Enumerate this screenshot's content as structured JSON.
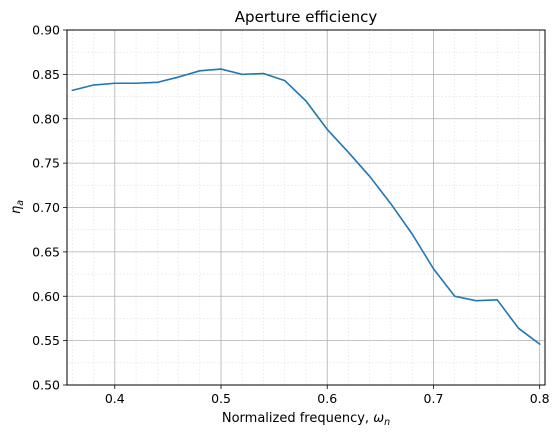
{
  "chart_data": {
    "type": "line",
    "title": "Aperture efficiency",
    "xlabel": {
      "text": "Normalized frequency, ",
      "symbol": "ω",
      "subscript": "n"
    },
    "ylabel": {
      "symbol": "η",
      "subscript": "a"
    },
    "xlim": [
      0.355,
      0.805
    ],
    "ylim": [
      0.5,
      0.9
    ],
    "xticks": [
      0.4,
      0.5,
      0.6,
      0.7,
      0.8
    ],
    "xtick_labels": [
      "0.4",
      "0.5",
      "0.6",
      "0.7",
      "0.8"
    ],
    "yticks": [
      0.5,
      0.55,
      0.6,
      0.65,
      0.7,
      0.75,
      0.8,
      0.85,
      0.9
    ],
    "ytick_labels": [
      "0.50",
      "0.55",
      "0.60",
      "0.65",
      "0.70",
      "0.75",
      "0.80",
      "0.85",
      "0.90"
    ],
    "grid": true,
    "series": [
      {
        "color": "#1f77b4",
        "x": [
          0.36,
          0.38,
          0.4,
          0.42,
          0.44,
          0.46,
          0.48,
          0.5,
          0.52,
          0.54,
          0.56,
          0.58,
          0.6,
          0.62,
          0.64,
          0.66,
          0.68,
          0.7,
          0.72,
          0.74,
          0.76,
          0.78,
          0.8
        ],
        "values": [
          0.832,
          0.838,
          0.84,
          0.84,
          0.841,
          0.847,
          0.854,
          0.856,
          0.85,
          0.851,
          0.843,
          0.82,
          0.788,
          0.762,
          0.735,
          0.704,
          0.67,
          0.631,
          0.6,
          0.595,
          0.596,
          0.564,
          0.546
        ]
      }
    ]
  }
}
